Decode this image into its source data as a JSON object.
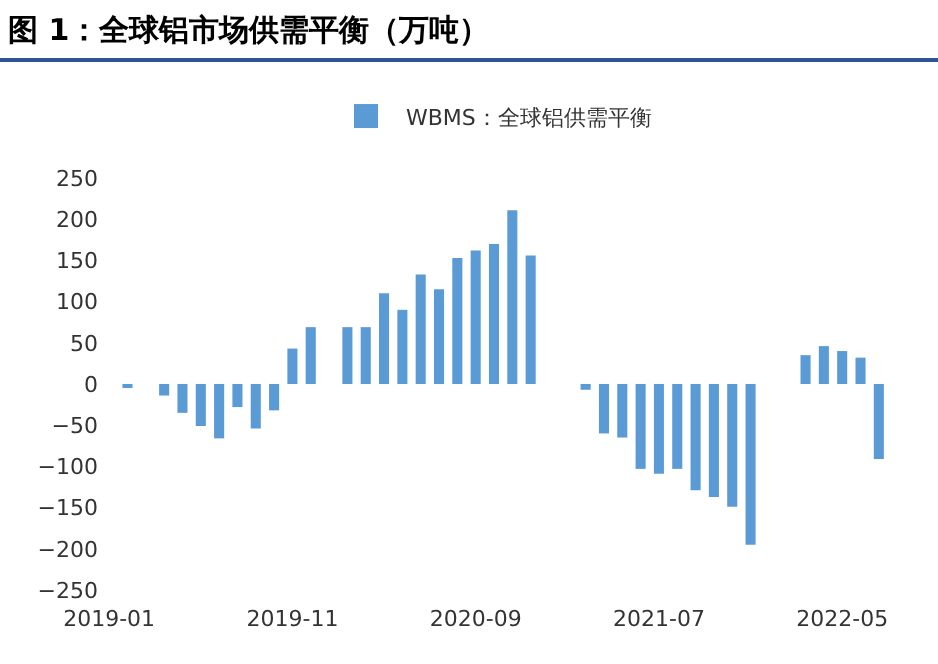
{
  "chart_data": {
    "type": "bar",
    "title": "图 1：全球铝市场供需平衡（万吨）",
    "categories": [
      "2019-01",
      null,
      null,
      null,
      null,
      null,
      null,
      null,
      null,
      null,
      "2019-11",
      null,
      null,
      null,
      null,
      null,
      null,
      null,
      null,
      null,
      "2020-09",
      null,
      null,
      null,
      null,
      null,
      null,
      null,
      null,
      null,
      "2021-07",
      null,
      null,
      null,
      null,
      null,
      null,
      null,
      null,
      null,
      "2022-05",
      null,
      null
    ],
    "series": [
      {
        "name": "WBMS：全球铝供需平衡",
        "color": "#5b9bd5",
        "values": [
          null,
          -4,
          null,
          -14,
          -35,
          -51,
          -66,
          -28,
          -54,
          -32,
          43,
          69,
          null,
          69,
          69,
          110,
          90,
          133,
          115,
          153,
          162,
          170,
          211,
          156,
          null,
          null,
          -7,
          -60,
          -65,
          -103,
          -109,
          -103,
          -129,
          -137,
          -149,
          -195,
          null,
          null,
          35,
          46,
          40,
          32,
          -91
        ]
      }
    ],
    "ylim": [
      -250,
      250
    ],
    "yticks": [
      -250,
      -200,
      -150,
      -100,
      -50,
      0,
      50,
      100,
      150,
      200,
      250
    ],
    "grid": false,
    "legend": "top"
  }
}
